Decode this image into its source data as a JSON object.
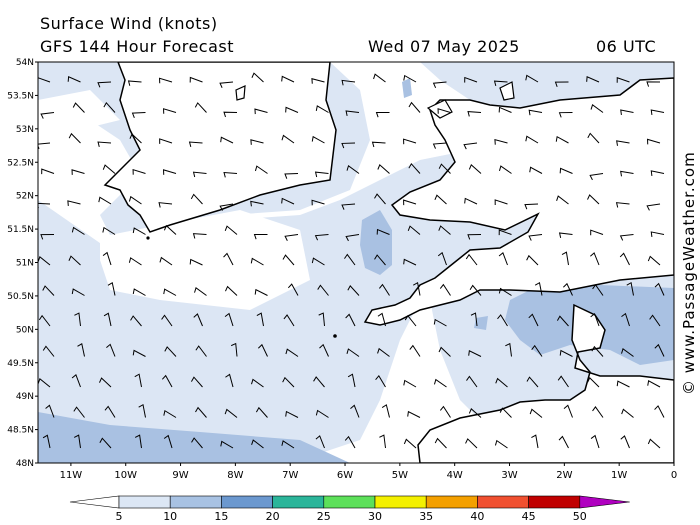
{
  "header": {
    "title": "Surface Wind (knots)",
    "subtitle": "GFS 144 Hour Forecast",
    "date": "Wed 07 May 2025",
    "time": "06 UTC"
  },
  "copyright": "© www.PassageWeather.com",
  "map": {
    "lat_labels": [
      "54N",
      "53.5N",
      "53N",
      "52.5N",
      "52N",
      "51.5N",
      "51N",
      "50.5N",
      "50N",
      "49.5N",
      "49N",
      "48.5N",
      "48N"
    ],
    "lon_labels": [
      "11W",
      "10W",
      "9W",
      "8W",
      "7W",
      "6W",
      "5W",
      "4W",
      "3W",
      "2W",
      "1W",
      "0"
    ],
    "lat_values": [
      54,
      53.5,
      53,
      52.5,
      52,
      51.5,
      51,
      50.5,
      50,
      49.5,
      49,
      48.5,
      48
    ],
    "lon_values": [
      -11,
      -10,
      -9,
      -8,
      -7,
      -6,
      -5,
      -4,
      -3,
      -2,
      -1,
      0
    ],
    "extent": {
      "lon_min": -11.6,
      "lon_max": 0,
      "lat_min": 48,
      "lat_max": 54
    }
  },
  "colorbar": {
    "labels": [
      "5",
      "10",
      "15",
      "20",
      "25",
      "30",
      "35",
      "40",
      "45",
      "50"
    ],
    "colors": [
      "#dce7f5",
      "#a8c2e3",
      "#6b98cf",
      "#2bb59a",
      "#5de05a",
      "#f4f000",
      "#f4a000",
      "#f05030",
      "#c00000",
      "#b000c0"
    ]
  },
  "wind_field_colors": {
    "light": "#dce6f4",
    "medium": "#a9c1e2",
    "land": "#ffffff",
    "coast": "#000000"
  }
}
